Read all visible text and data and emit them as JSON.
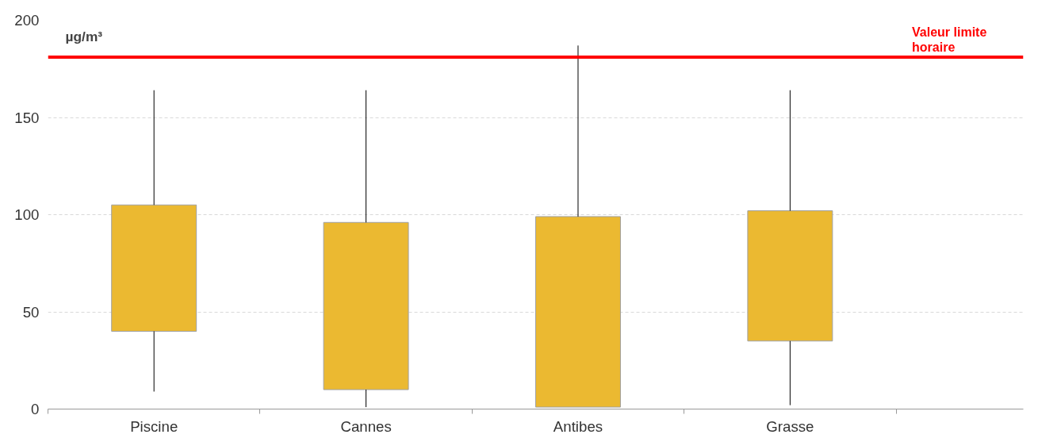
{
  "chart_data": {
    "type": "box",
    "ylabel": "µg/m³",
    "categories": [
      "Piscine",
      "Cannes",
      "Antibes",
      "Grasse"
    ],
    "series": [
      {
        "color": "#ebb931",
        "boxes": [
          {
            "low": 9,
            "q1": 40,
            "q3": 105,
            "high": 164
          },
          {
            "low": 1,
            "q1": 10,
            "q3": 96,
            "high": 164
          },
          {
            "low": 1,
            "q1": 1,
            "q3": 99,
            "high": 187
          },
          {
            "low": 2,
            "q1": 35,
            "q3": 102,
            "high": 164
          }
        ]
      }
    ],
    "ylim": [
      0,
      200
    ],
    "yticks": [
      0,
      50,
      100,
      150,
      200
    ],
    "grid": "y",
    "ref_lines": [
      {
        "axis": "y",
        "value": 181,
        "label": "Valeur limite\nhoraire",
        "color": "#ff0000"
      }
    ]
  }
}
